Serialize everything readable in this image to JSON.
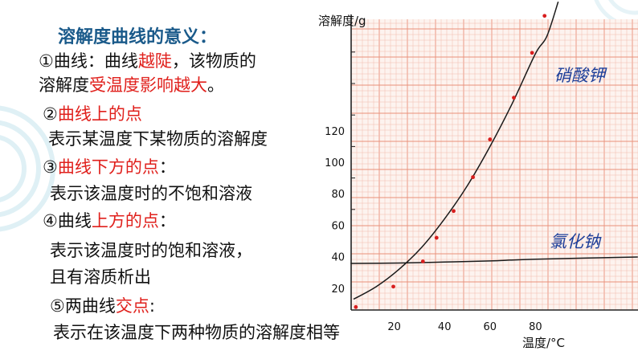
{
  "slide": {
    "heading": "溶解度曲线的意义：",
    "lines": [
      {
        "parts": [
          {
            "text": "①曲线：曲线",
            "color": "black"
          },
          {
            "text": "越陡",
            "color": "red"
          },
          {
            "text": "，该物质的",
            "color": "black"
          }
        ]
      },
      {
        "parts": [
          {
            "text": "溶解度",
            "color": "black"
          },
          {
            "text": "受温度影响越大",
            "color": "red"
          },
          {
            "text": "。",
            "color": "black"
          }
        ]
      },
      {
        "parts": [
          {
            "text": "②",
            "color": "black"
          },
          {
            "text": "曲线上的点",
            "color": "red"
          }
        ]
      },
      {
        "parts": [
          {
            "text": "表示某温度下某物质的溶解度",
            "color": "black"
          }
        ]
      },
      {
        "parts": [
          {
            "text": "③",
            "color": "black"
          },
          {
            "text": "曲线下方的点",
            "color": "red"
          },
          {
            "text": "：",
            "color": "black"
          }
        ]
      },
      {
        "parts": [
          {
            "text": "表示该温度时的不饱和溶液",
            "color": "black"
          }
        ]
      },
      {
        "parts": [
          {
            "text": "④曲线",
            "color": "black"
          },
          {
            "text": "上方的点",
            "color": "red"
          },
          {
            "text": "：",
            "color": "black"
          }
        ]
      },
      {
        "parts": [
          {
            "text": "表示该温度时的饱和溶液，",
            "color": "black"
          }
        ]
      },
      {
        "parts": [
          {
            "text": "且有溶质析出",
            "color": "black"
          }
        ]
      },
      {
        "parts": [
          {
            "text": "⑤两曲线",
            "color": "black"
          },
          {
            "text": "交点",
            "color": "red"
          },
          {
            "text": ":",
            "color": "black"
          }
        ]
      },
      {
        "parts": [
          {
            "text": "表示在该温度下两种物质的溶解度相等",
            "color": "black"
          }
        ]
      }
    ]
  },
  "colors": {
    "heading": "#1a5a8a",
    "red": "#e0201c",
    "grid": "#f2b5a6",
    "grid_major": "#e9907a",
    "curve": "#1a1a1a",
    "point": "#d81e1e",
    "handwriting": "#1d3f9a"
  },
  "chart_data": {
    "type": "line",
    "title": "",
    "xlabel": "温度/°C",
    "ylabel": "溶解度/g",
    "xlim": [
      0,
      100
    ],
    "ylim": [
      0,
      200
    ],
    "x_ticks": [
      20,
      40,
      60,
      80
    ],
    "y_ticks": [
      20,
      40,
      60,
      80,
      100,
      120
    ],
    "grid": true,
    "series": [
      {
        "name": "硝酸钾",
        "x": [
          0,
          10,
          20,
          30,
          40,
          50,
          60,
          70,
          80,
          85,
          90
        ],
        "y": [
          13,
          21,
          32,
          46,
          64,
          85,
          110,
          138,
          169,
          180,
          202
        ]
      },
      {
        "name": "氯化钠",
        "x": [
          0,
          20,
          40,
          60,
          80,
          100
        ],
        "y": [
          35.7,
          36,
          36.6,
          37.3,
          38.4,
          39.8
        ]
      }
    ],
    "points": [
      {
        "x": 1,
        "y": 8
      },
      {
        "x": 17.5,
        "y": 21
      },
      {
        "x": 30.5,
        "y": 37
      },
      {
        "x": 36.5,
        "y": 52
      },
      {
        "x": 44,
        "y": 69
      },
      {
        "x": 52.5,
        "y": 90.5
      },
      {
        "x": 60,
        "y": 114.5
      },
      {
        "x": 70.5,
        "y": 141
      },
      {
        "x": 78.5,
        "y": 169.5
      },
      {
        "x": 84,
        "y": 193
      }
    ]
  }
}
